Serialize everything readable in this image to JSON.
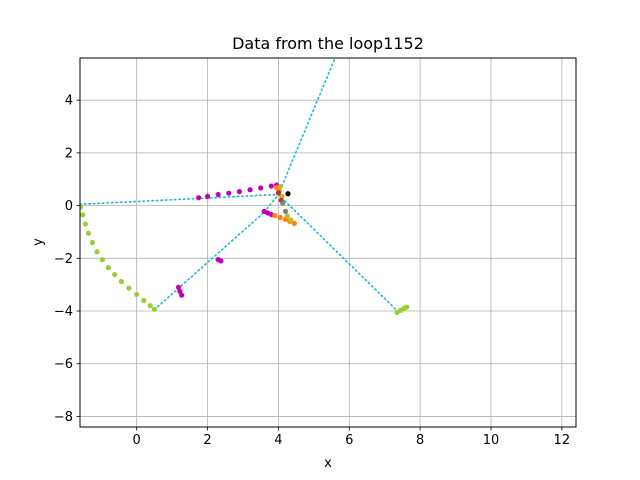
{
  "chart_data": {
    "type": "scatter",
    "title": "Data from the loop1152",
    "xlabel": "x",
    "ylabel": "y",
    "xlim": [
      -1.6,
      12.4
    ],
    "ylim": [
      -8.4,
      5.6
    ],
    "xticks": [
      0,
      2,
      4,
      6,
      8,
      10,
      12
    ],
    "yticks": [
      -8,
      -6,
      -4,
      -2,
      0,
      2,
      4
    ],
    "xtick_labels": [
      "0",
      "2",
      "4",
      "6",
      "8",
      "10",
      "12"
    ],
    "ytick_labels": [
      "−8",
      "−6",
      "−4",
      "−2",
      "0",
      "2",
      "4"
    ],
    "grid": true,
    "colors": {
      "cyan": "#17becf",
      "yellowgreen": "#9acd32",
      "magenta": "#bf00bf",
      "orange": "#ff7f0e",
      "olive": "#bcbd22",
      "red": "#d62728",
      "black": "#000000",
      "grey": "#7f7f7f"
    },
    "series": [
      {
        "style": "dotted-line",
        "color": "cyan",
        "segments": [
          [
            [
              -1.6,
              0.05
            ],
            [
              4.0,
              0.42
            ]
          ],
          [
            [
              0.5,
              -3.95
            ],
            [
              3.6,
              -0.25
            ]
          ],
          [
            [
              3.6,
              -0.25
            ],
            [
              4.0,
              0.42
            ]
          ],
          [
            [
              4.0,
              0.42
            ],
            [
              5.6,
              5.6
            ]
          ],
          [
            [
              4.0,
              0.42
            ],
            [
              7.4,
              -4.05
            ]
          ]
        ]
      },
      {
        "style": "points",
        "color": "yellowgreen",
        "points": [
          [
            -1.58,
            -0.05
          ],
          [
            -1.52,
            -0.35
          ],
          [
            -1.45,
            -0.7
          ],
          [
            -1.36,
            -1.05
          ],
          [
            -1.25,
            -1.4
          ],
          [
            -1.12,
            -1.75
          ],
          [
            -0.97,
            -2.05
          ],
          [
            -0.8,
            -2.35
          ],
          [
            -0.62,
            -2.62
          ],
          [
            -0.43,
            -2.88
          ],
          [
            -0.22,
            -3.13
          ],
          [
            0.0,
            -3.37
          ],
          [
            0.2,
            -3.6
          ],
          [
            0.38,
            -3.8
          ],
          [
            0.5,
            -3.93
          ],
          [
            7.35,
            -4.05
          ],
          [
            7.45,
            -3.97
          ],
          [
            7.55,
            -3.9
          ],
          [
            7.62,
            -3.85
          ]
        ]
      },
      {
        "style": "points",
        "color": "magenta",
        "points": [
          [
            1.75,
            0.3
          ],
          [
            2.0,
            0.35
          ],
          [
            2.3,
            0.42
          ],
          [
            2.6,
            0.47
          ],
          [
            2.9,
            0.53
          ],
          [
            3.2,
            0.6
          ],
          [
            3.5,
            0.67
          ],
          [
            3.8,
            0.74
          ],
          [
            3.95,
            0.78
          ],
          [
            3.6,
            -0.22
          ],
          [
            3.7,
            -0.28
          ],
          [
            3.8,
            -0.34
          ],
          [
            1.18,
            -3.1
          ],
          [
            1.22,
            -3.25
          ],
          [
            1.27,
            -3.4
          ],
          [
            2.3,
            -2.05
          ],
          [
            2.38,
            -2.1
          ]
        ]
      },
      {
        "style": "points",
        "color": "orange",
        "points": [
          [
            3.9,
            -0.38
          ],
          [
            4.05,
            -0.45
          ],
          [
            4.2,
            -0.52
          ],
          [
            4.32,
            -0.6
          ],
          [
            4.45,
            -0.68
          ],
          [
            3.95,
            0.68
          ],
          [
            4.02,
            0.55
          ]
        ]
      },
      {
        "style": "points",
        "color": "olive",
        "points": [
          [
            4.05,
            0.72
          ],
          [
            4.1,
            0.35
          ],
          [
            4.25,
            -0.4
          ],
          [
            4.35,
            -0.55
          ]
        ]
      },
      {
        "style": "points",
        "color": "red",
        "points": [
          [
            4.0,
            0.48
          ],
          [
            4.08,
            0.2
          ]
        ]
      },
      {
        "style": "points",
        "color": "black",
        "points": [
          [
            4.27,
            0.45
          ]
        ]
      },
      {
        "style": "points",
        "color": "grey",
        "points": [
          [
            4.2,
            -0.22
          ],
          [
            4.12,
            0.1
          ]
        ]
      }
    ]
  }
}
